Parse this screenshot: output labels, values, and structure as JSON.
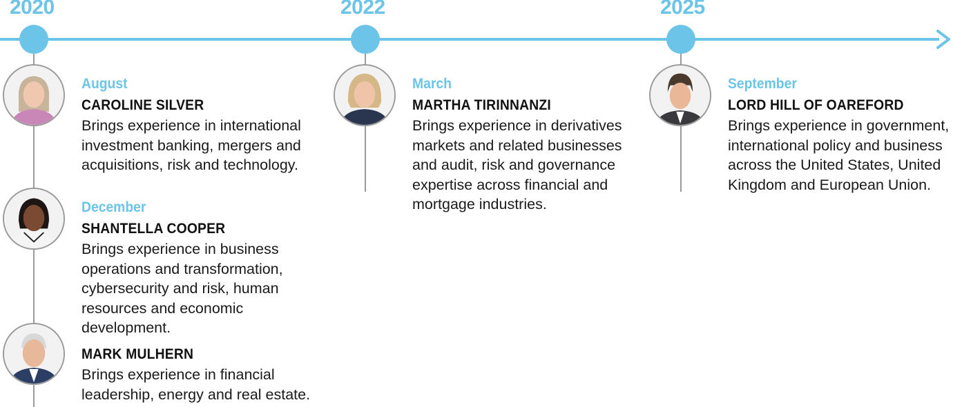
{
  "years": [
    "2020",
    "2022",
    "2025"
  ],
  "colors": {
    "accent": "#6cc4e8",
    "line": "#9a9a9a",
    "text": "#1a1a1a"
  },
  "entries": [
    {
      "month": "August",
      "name": "CAROLINE SILVER",
      "description": "Brings experience in international investment banking, mergers and acquisitions, risk and technology."
    },
    {
      "month": "December",
      "name": "SHANTELLA COOPER",
      "description": "Brings experience in business operations and transformation, cybersecurity and risk, human resources and economic development."
    },
    {
      "month": "",
      "name": "MARK MULHERN",
      "description": "Brings experience in financial leadership, energy and real estate."
    },
    {
      "month": "March",
      "name": "MARTHA TIRINNANZI",
      "description": "Brings experience in derivatives markets and related businesses and audit, risk and governance expertise across financial and mortgage industries."
    },
    {
      "month": "September",
      "name": "LORD HILL OF OAREFORD",
      "description": "Brings experience in government, international policy and business across the United States, United Kingdom and European Union."
    }
  ]
}
